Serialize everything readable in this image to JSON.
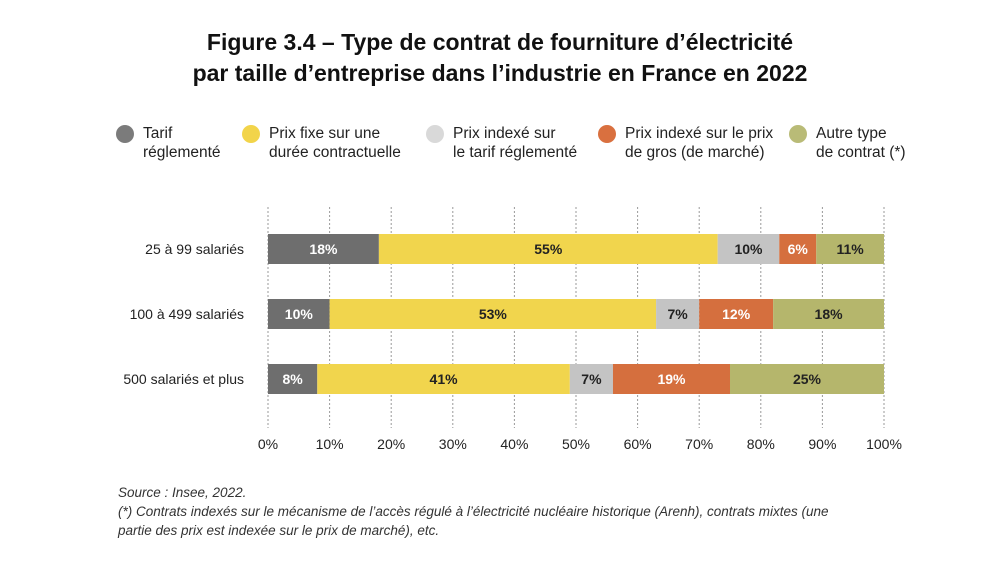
{
  "title": {
    "line1": "Figure 3.4 – Type de contrat de fourniture d’électricité",
    "line2": "par taille d’entreprise dans l’industrie en France en 2022"
  },
  "legend": [
    {
      "line1": "Tarif",
      "line2": "réglementé",
      "color": "#7b7b7b"
    },
    {
      "line1": "Prix fixe sur une",
      "line2": "durée contractuelle",
      "color": "#f2d44a"
    },
    {
      "line1": "Prix indexé sur",
      "line2": "le tarif réglementé",
      "color": "#d9d9d9"
    },
    {
      "line1": "Prix indexé sur le prix",
      "line2": "de gros (de marché)",
      "color": "#d9703f"
    },
    {
      "line1": "Autre type",
      "line2": "de contrat (*)",
      "color": "#b9bb77"
    }
  ],
  "chart_data": {
    "type": "bar",
    "orientation": "horizontal",
    "stacked": true,
    "categories": [
      "25 à 99 salariés",
      "100 à 499 salariés",
      "500 salariés et plus"
    ],
    "series": [
      {
        "name": "Tarif réglementé",
        "values": [
          18,
          10,
          8
        ],
        "labels": [
          "18%",
          "10%",
          "8%"
        ],
        "color": "#6e6e6e",
        "label_color": "#ffffff"
      },
      {
        "name": "Prix fixe sur une durée contractuelle",
        "values": [
          55,
          53,
          41
        ],
        "labels": [
          "55%",
          "53%",
          "41%"
        ],
        "color": "#f1d54d",
        "label_color": "#222222"
      },
      {
        "name": "Prix indexé sur le tarif réglementé",
        "values": [
          10,
          7,
          7
        ],
        "labels": [
          "10%",
          "7%",
          "7%"
        ],
        "color": "#c4c4c4",
        "label_color": "#222222"
      },
      {
        "name": "Prix indexé sur le prix de gros (de marché)",
        "values": [
          6,
          12,
          19
        ],
        "labels": [
          "6%",
          "12%",
          "19%"
        ],
        "color": "#d56f3e",
        "label_color": "#ffffff"
      },
      {
        "name": "Autre type de contrat (*)",
        "values": [
          11,
          18,
          25
        ],
        "labels": [
          "11%",
          "18%",
          "25%"
        ],
        "color": "#b5b66c",
        "label_color": "#222222"
      }
    ],
    "xlim": [
      0,
      100
    ],
    "xticks": [
      "0%",
      "10%",
      "20%",
      "30%",
      "40%",
      "50%",
      "60%",
      "70%",
      "80%",
      "90%",
      "100%"
    ],
    "grid": "vertical dashed",
    "legend_position": "top"
  },
  "footer": {
    "source": "Source : Insee, 2022.",
    "note_line1": "(*) Contrats indexés sur le mécanisme de l’accès régulé à l’électricité nucléaire historique (Arenh), contrats mixtes (une",
    "note_line2": "partie des prix est indexée sur le prix de marché), etc."
  }
}
